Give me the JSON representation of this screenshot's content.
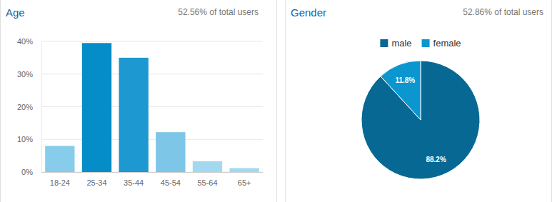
{
  "chart_data": [
    {
      "type": "bar",
      "title": "Age",
      "subtitle": "52.56% of total users",
      "categories": [
        "18-24",
        "25-34",
        "35-44",
        "45-54",
        "55-64",
        "65+"
      ],
      "values": [
        8,
        39.5,
        35,
        12.2,
        3.3,
        1.2
      ],
      "colors": [
        "#87cdeb",
        "#058dc7",
        "#1e98d0",
        "#7dc6e8",
        "#a3d8f1",
        "#a3d8f1"
      ],
      "ylim": [
        0,
        40
      ],
      "yticks": [
        {
          "value": 0,
          "label": "0%"
        },
        {
          "value": 10,
          "label": "10%"
        },
        {
          "value": 20,
          "label": "20%"
        },
        {
          "value": 30,
          "label": "30%"
        },
        {
          "value": 40,
          "label": "40%"
        }
      ],
      "grid": true
    },
    {
      "type": "pie",
      "title": "Gender",
      "subtitle": "52.86% of total users",
      "categories": [
        "male",
        "female"
      ],
      "values": [
        88.2,
        11.8
      ],
      "value_labels": [
        "88.2%",
        "11.8%"
      ],
      "colors": [
        "#076893",
        "#0b96d0"
      ],
      "legend": "top",
      "data_labels": true
    }
  ]
}
